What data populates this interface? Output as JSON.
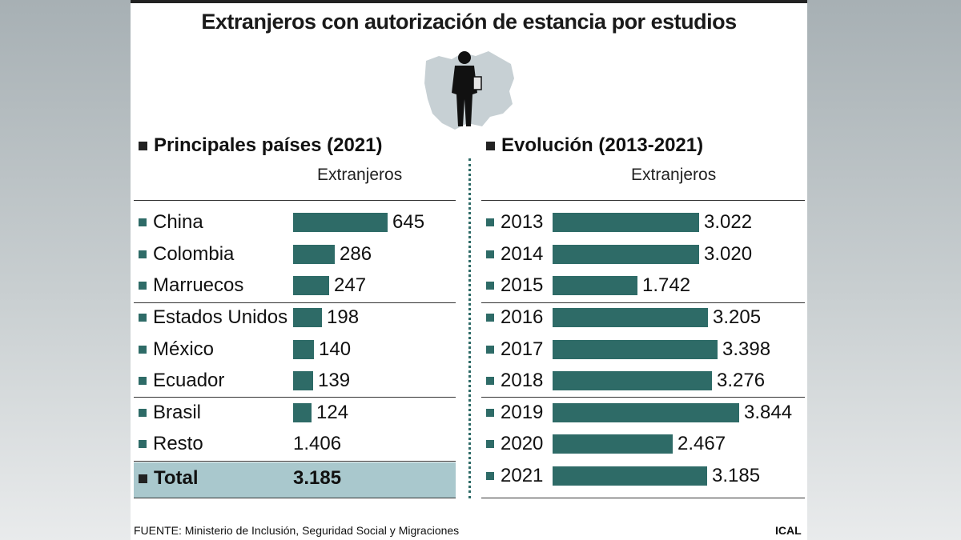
{
  "title": "Extranjeros con autorización de estancia por estudios",
  "icon": "student-silhouette-on-map-icon",
  "colors": {
    "bar": "#2e6b67",
    "total_bg": "#a9c8cd"
  },
  "left": {
    "heading": "Principales países (2021)",
    "subheading": "Extranjeros",
    "total": {
      "label": "Total",
      "value": "3.185"
    }
  },
  "right": {
    "heading": "Evolución (2013-2021)",
    "subheading": "Extranjeros"
  },
  "footer": {
    "source": "FUENTE: Ministerio de Inclusión, Seguridad Social y Migraciones",
    "credit": "ICAL"
  },
  "chart_data": [
    {
      "type": "bar",
      "title": "Principales países (2021)",
      "ylabel": "Extranjeros",
      "categories": [
        "China",
        "Colombia",
        "Marruecos",
        "Estados Unidos",
        "México",
        "Ecuador",
        "Brasil",
        "Resto"
      ],
      "values": [
        645,
        286,
        247,
        198,
        140,
        139,
        124,
        1406
      ],
      "value_labels": [
        "645",
        "286",
        "247",
        "198",
        "140",
        "139",
        "124",
        "1.406"
      ],
      "bar_drawn": [
        true,
        true,
        true,
        true,
        true,
        true,
        true,
        false
      ],
      "total": 3185
    },
    {
      "type": "bar",
      "title": "Evolución (2013-2021)",
      "ylabel": "Extranjeros",
      "categories": [
        "2013",
        "2014",
        "2015",
        "2016",
        "2017",
        "2018",
        "2019",
        "2020",
        "2021"
      ],
      "values": [
        3022,
        3020,
        1742,
        3205,
        3398,
        3276,
        3844,
        2467,
        3185
      ],
      "value_labels": [
        "3.022",
        "3.020",
        "1.742",
        "3.205",
        "3.398",
        "3.276",
        "3.844",
        "2.467",
        "3.185"
      ]
    }
  ]
}
